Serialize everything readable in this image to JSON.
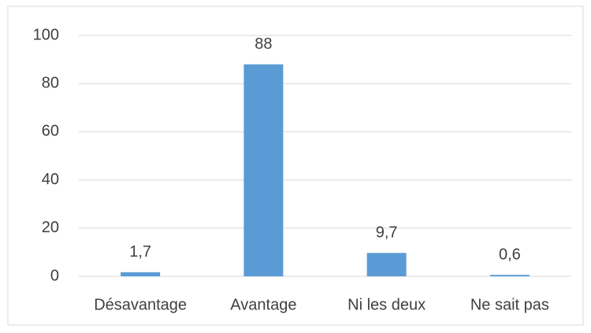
{
  "chart_data": {
    "type": "bar",
    "categories": [
      "Désavantage",
      "Avantage",
      "Ni les deux",
      "Ne sait pas"
    ],
    "values": [
      1.7,
      88,
      9.7,
      0.6
    ],
    "value_labels": [
      "1,7",
      "88",
      "9,7",
      "0,6"
    ],
    "color": "#5b9bd5",
    "ylim": [
      0,
      100
    ],
    "yticks": [
      0,
      20,
      40,
      60,
      80,
      100
    ],
    "grid": true
  }
}
